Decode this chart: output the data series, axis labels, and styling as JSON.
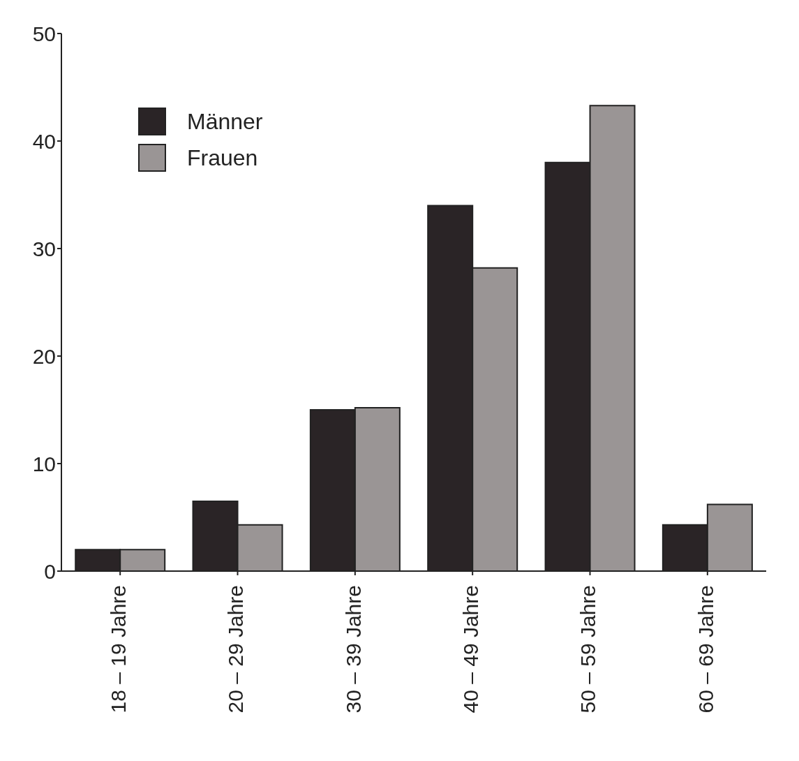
{
  "chart_data": {
    "type": "bar",
    "categories": [
      "18 – 19 Jahre",
      "20 – 29 Jahre",
      "30 – 39 Jahre",
      "40 – 49 Jahre",
      "50 – 59 Jahre",
      "60 – 69 Jahre"
    ],
    "series": [
      {
        "name": "Männer",
        "color": "#2a2426",
        "values": [
          2,
          6.5,
          15,
          34,
          38,
          4.3
        ]
      },
      {
        "name": "Frauen",
        "color": "#9a9595",
        "values": [
          2,
          4.3,
          15.2,
          28.2,
          43.3,
          6.2
        ]
      }
    ],
    "ylim": [
      0,
      50
    ],
    "yticks": [
      0,
      10,
      20,
      30,
      40,
      50
    ],
    "grid": false,
    "legend": "top left"
  }
}
